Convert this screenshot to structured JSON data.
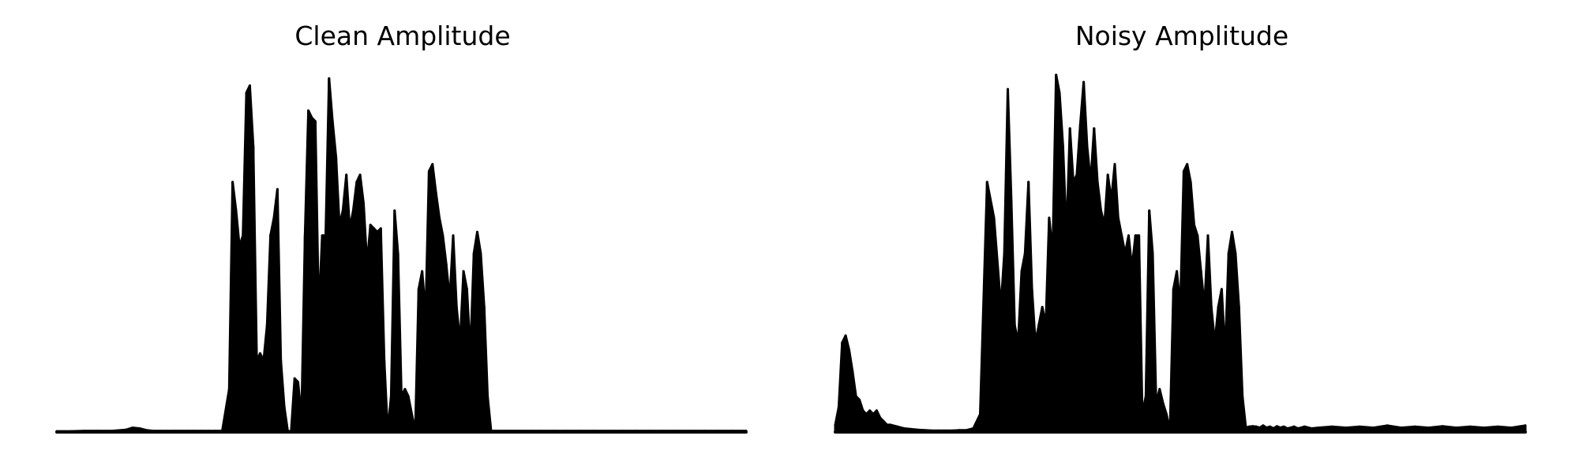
{
  "figure": {
    "background": "#ffffff",
    "waveform_color": "#000000"
  },
  "chart_data": [
    {
      "type": "area",
      "title": "Clean Amplitude",
      "xlabel": "",
      "ylabel": "",
      "axes_visible": false,
      "grid": false,
      "xlim": [
        0,
        1000
      ],
      "ylim": [
        0,
        1
      ],
      "x": [
        0,
        20,
        40,
        60,
        80,
        100,
        110,
        120,
        130,
        140,
        150,
        160,
        170,
        180,
        190,
        200,
        210,
        220,
        230,
        240,
        250,
        255,
        260,
        265,
        270,
        275,
        280,
        285,
        290,
        295,
        300,
        305,
        310,
        315,
        320,
        325,
        330,
        335,
        340,
        345,
        350,
        355,
        360,
        365,
        370,
        375,
        380,
        385,
        390,
        395,
        400,
        405,
        410,
        415,
        420,
        425,
        430,
        435,
        440,
        445,
        450,
        455,
        460,
        465,
        470,
        475,
        480,
        485,
        490,
        495,
        500,
        505,
        510,
        515,
        520,
        525,
        530,
        535,
        540,
        545,
        550,
        555,
        560,
        565,
        570,
        575,
        580,
        585,
        590,
        595,
        600,
        605,
        610,
        615,
        620,
        625,
        630,
        635,
        640,
        645,
        650,
        655,
        660,
        665,
        670,
        675,
        680,
        690,
        700,
        720,
        740,
        760,
        780,
        800,
        820,
        840,
        860,
        880,
        900,
        920,
        940,
        960,
        980,
        1000
      ],
      "values": [
        0.002,
        0.002,
        0.003,
        0.003,
        0.003,
        0.006,
        0.012,
        0.01,
        0.005,
        0.003,
        0.003,
        0.003,
        0.003,
        0.003,
        0.003,
        0.003,
        0.003,
        0.003,
        0.003,
        0.003,
        0.12,
        0.7,
        0.62,
        0.52,
        0.55,
        0.95,
        0.97,
        0.8,
        0.2,
        0.22,
        0.2,
        0.3,
        0.55,
        0.6,
        0.68,
        0.2,
        0.07,
        0.002,
        0.003,
        0.15,
        0.14,
        0.04,
        0.55,
        0.9,
        0.88,
        0.87,
        0.33,
        0.55,
        0.55,
        0.99,
        0.87,
        0.77,
        0.58,
        0.62,
        0.72,
        0.57,
        0.62,
        0.7,
        0.72,
        0.64,
        0.47,
        0.58,
        0.57,
        0.56,
        0.57,
        0.2,
        0.003,
        0.1,
        0.62,
        0.5,
        0.1,
        0.12,
        0.1,
        0.05,
        0.003,
        0.4,
        0.45,
        0.33,
        0.73,
        0.75,
        0.67,
        0.6,
        0.55,
        0.47,
        0.37,
        0.55,
        0.35,
        0.25,
        0.45,
        0.4,
        0.22,
        0.5,
        0.56,
        0.5,
        0.35,
        0.1,
        0.003,
        0.003,
        0.003,
        0.003,
        0.003,
        0.003,
        0.003,
        0.003,
        0.003,
        0.003,
        0.003,
        0.003,
        0.003,
        0.003,
        0.003,
        0.003,
        0.003,
        0.003,
        0.003,
        0.003,
        0.003,
        0.003,
        0.003,
        0.003,
        0.003,
        0.003,
        0.003,
        0.003
      ]
    },
    {
      "type": "area",
      "title": "Noisy Amplitude",
      "xlabel": "",
      "ylabel": "",
      "axes_visible": false,
      "grid": false,
      "xlim": [
        0,
        1000
      ],
      "ylim": [
        0,
        1
      ],
      "x": [
        0,
        5,
        10,
        15,
        20,
        25,
        30,
        35,
        40,
        45,
        50,
        55,
        60,
        65,
        70,
        75,
        80,
        90,
        100,
        110,
        120,
        130,
        140,
        150,
        160,
        170,
        180,
        190,
        200,
        210,
        220,
        230,
        240,
        245,
        250,
        255,
        260,
        265,
        270,
        275,
        280,
        285,
        290,
        295,
        300,
        305,
        310,
        315,
        320,
        325,
        330,
        335,
        340,
        345,
        350,
        355,
        360,
        365,
        370,
        375,
        380,
        385,
        390,
        395,
        400,
        405,
        410,
        415,
        420,
        425,
        430,
        435,
        440,
        445,
        450,
        455,
        460,
        465,
        470,
        475,
        480,
        485,
        490,
        495,
        500,
        505,
        510,
        515,
        520,
        525,
        530,
        535,
        540,
        545,
        550,
        555,
        560,
        565,
        570,
        575,
        580,
        585,
        590,
        595,
        600,
        605,
        610,
        615,
        620,
        625,
        630,
        635,
        640,
        645,
        650,
        655,
        660,
        665,
        670,
        675,
        680,
        690,
        700,
        720,
        740,
        760,
        780,
        800,
        820,
        840,
        860,
        880,
        900,
        920,
        940,
        960,
        980,
        1000
      ],
      "values": [
        0.02,
        0.07,
        0.25,
        0.27,
        0.23,
        0.17,
        0.1,
        0.09,
        0.06,
        0.05,
        0.06,
        0.05,
        0.06,
        0.04,
        0.03,
        0.02,
        0.02,
        0.015,
        0.01,
        0.008,
        0.006,
        0.005,
        0.004,
        0.004,
        0.004,
        0.004,
        0.005,
        0.005,
        0.01,
        0.05,
        0.7,
        0.6,
        0.35,
        0.5,
        0.96,
        0.65,
        0.3,
        0.25,
        0.45,
        0.5,
        0.7,
        0.4,
        0.25,
        0.3,
        0.35,
        0.3,
        0.6,
        0.5,
        1.0,
        0.95,
        0.8,
        0.55,
        0.85,
        0.7,
        0.72,
        0.86,
        0.98,
        0.8,
        0.7,
        0.85,
        0.7,
        0.62,
        0.58,
        0.72,
        0.65,
        0.75,
        0.6,
        0.55,
        0.5,
        0.55,
        0.46,
        0.55,
        0.55,
        0.05,
        0.1,
        0.62,
        0.5,
        0.08,
        0.12,
        0.08,
        0.05,
        0.003,
        0.4,
        0.45,
        0.35,
        0.73,
        0.75,
        0.7,
        0.58,
        0.55,
        0.45,
        0.35,
        0.55,
        0.35,
        0.25,
        0.35,
        0.4,
        0.22,
        0.5,
        0.56,
        0.5,
        0.35,
        0.1,
        0.012,
        0.015,
        0.016,
        0.015,
        0.012,
        0.018,
        0.012,
        0.015,
        0.01,
        0.016,
        0.012,
        0.015,
        0.01,
        0.012,
        0.015,
        0.01,
        0.012,
        0.015,
        0.01,
        0.012,
        0.015,
        0.012,
        0.015,
        0.012,
        0.018,
        0.012,
        0.015,
        0.012,
        0.016,
        0.012,
        0.015,
        0.012,
        0.015,
        0.012,
        0.018
      ]
    }
  ]
}
